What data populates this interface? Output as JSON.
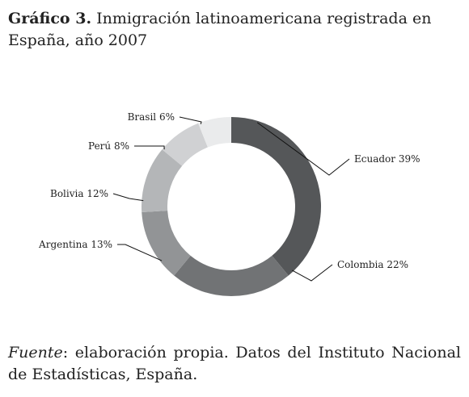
{
  "title": {
    "number": "Gráfico 3.",
    "text": "Inmigración latinoamericana registrada en España, año 2007"
  },
  "source": {
    "label": "Fuente",
    "text": ": elaboración propia. Datos del Instituto Nacional de Estadísticas, España."
  },
  "chart_data": {
    "type": "pie",
    "variant": "donut",
    "title": "Inmigración latinoamericana registrada en España, año 2007",
    "unit": "%",
    "slices": [
      {
        "name": "Ecuador",
        "value": 39,
        "label": "Ecuador 39%",
        "color": "#555759",
        "label_side": "right"
      },
      {
        "name": "Colombia",
        "value": 22,
        "label": "Colombia 22%",
        "color": "#717375",
        "label_side": "right"
      },
      {
        "name": "Argentina",
        "value": 13,
        "label": "Argentina 13%",
        "color": "#929496",
        "label_side": "left"
      },
      {
        "name": "Bolivia",
        "value": 12,
        "label": "Bolivia 12%",
        "color": "#b4b6b8",
        "label_side": "left"
      },
      {
        "name": "Perú",
        "value": 8,
        "label": "Perú 8%",
        "color": "#d0d1d3",
        "label_side": "left"
      },
      {
        "name": "Brasil",
        "value": 6,
        "label": "Brasil 6%",
        "color": "#eaebec",
        "label_side": "left"
      }
    ],
    "start_angle_deg": 0,
    "direction": "clockwise",
    "legend": "none"
  }
}
